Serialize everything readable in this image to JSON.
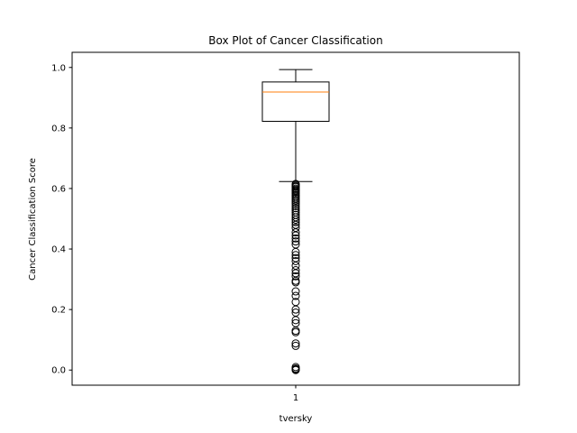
{
  "chart_data": {
    "type": "box",
    "title": "Box Plot of Cancer Classification",
    "xlabel": "tversky",
    "ylabel": "Cancer Classification Score",
    "categories": [
      "1"
    ],
    "ylim": [
      -0.05,
      1.05
    ],
    "yticks": [
      0.0,
      0.2,
      0.4,
      0.6,
      0.8,
      1.0
    ],
    "ytick_labels": [
      "0.0",
      "0.2",
      "0.4",
      "0.6",
      "0.8",
      "1.0"
    ],
    "grid": false,
    "series": [
      {
        "whisker_low": 0.623,
        "q1": 0.822,
        "median": 0.919,
        "q3": 0.952,
        "whisker_high": 0.993,
        "fliers": [
          0.615,
          0.612,
          0.608,
          0.605,
          0.6,
          0.596,
          0.592,
          0.588,
          0.583,
          0.578,
          0.573,
          0.567,
          0.561,
          0.555,
          0.549,
          0.542,
          0.535,
          0.528,
          0.521,
          0.513,
          0.505,
          0.497,
          0.489,
          0.48,
          0.47,
          0.455,
          0.445,
          0.435,
          0.425,
          0.415,
          0.39,
          0.38,
          0.37,
          0.36,
          0.345,
          0.33,
          0.32,
          0.31,
          0.295,
          0.29,
          0.26,
          0.245,
          0.225,
          0.2,
          0.19,
          0.165,
          0.155,
          0.13,
          0.125,
          0.088,
          0.08,
          0.01,
          0.005,
          0.002,
          0.0
        ]
      }
    ],
    "colors": {
      "box": "#000000",
      "median": "#ff7f0e",
      "flier": "#000000"
    }
  }
}
